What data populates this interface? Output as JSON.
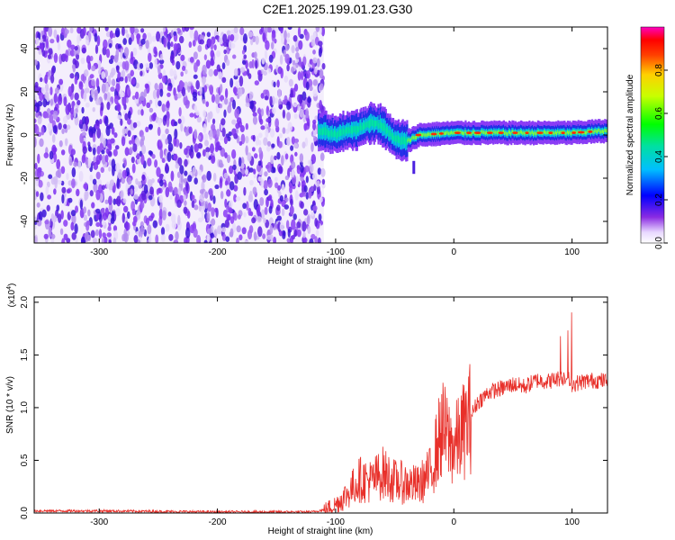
{
  "title": "C2E1.2025.199.01.23.G30",
  "chart_data": [
    {
      "type": "heatmap",
      "title": "C2E1.2025.199.01.23.G30",
      "xlabel": "Height of straight line (km)",
      "ylabel": "Frequency (Hz)",
      "xlim": [
        -355,
        130
      ],
      "ylim": [
        -50,
        50
      ],
      "x_ticks": [
        -300,
        -200,
        -100,
        0,
        100
      ],
      "y_ticks": [
        -40,
        -20,
        0,
        20,
        40
      ],
      "colorbar": {
        "label": "Normalized spectral amplitude",
        "range": [
          0.0,
          1.0
        ],
        "ticks": [
          0.0,
          0.2,
          0.4,
          0.6,
          0.8
        ]
      },
      "features": {
        "noise_region_x": [
          -355,
          -110
        ],
        "signal_start_x": -115,
        "signal_center_freq": [
          [
            -115,
            2
          ],
          [
            -100,
            0
          ],
          [
            -90,
            2
          ],
          [
            -80,
            3
          ],
          [
            -70,
            6
          ],
          [
            -60,
            4
          ],
          [
            -50,
            -2
          ],
          [
            -40,
            -3
          ],
          [
            -30,
            0
          ],
          [
            0,
            1
          ],
          [
            50,
            1
          ],
          [
            100,
            1
          ],
          [
            130,
            2
          ]
        ],
        "side_feature": {
          "x": -35,
          "y": [
            -18,
            -12
          ]
        }
      },
      "grid": false
    },
    {
      "type": "line",
      "xlabel": "Height of straight line (km)",
      "ylabel": "SNR (10 * v/v)",
      "y_scale_label": "(x10^4)",
      "xlim": [
        -355,
        130
      ],
      "ylim": [
        0,
        2.05
      ],
      "x_ticks": [
        -300,
        -200,
        -100,
        0,
        100
      ],
      "y_ticks": [
        0.0,
        0.5,
        1.0,
        1.5,
        2.0
      ],
      "series": [
        {
          "color": "#e8302a",
          "x": [
            -355,
            -300,
            -200,
            -120,
            -110,
            -100,
            -90,
            -80,
            -70,
            -60,
            -50,
            -40,
            -30,
            -20,
            -10,
            0,
            10,
            20,
            30,
            40,
            50,
            60,
            70,
            80,
            90,
            95,
            100,
            110,
            120,
            130
          ],
          "values": [
            0.02,
            0.02,
            0.01,
            0.01,
            0.03,
            0.08,
            0.18,
            0.32,
            0.3,
            0.38,
            0.3,
            0.28,
            0.26,
            0.38,
            0.8,
            0.62,
            0.82,
            1.05,
            1.15,
            1.18,
            1.22,
            1.2,
            1.26,
            1.25,
            1.28,
            1.3,
            1.22,
            1.25,
            1.26,
            1.25
          ]
        }
      ],
      "grid": false
    }
  ]
}
